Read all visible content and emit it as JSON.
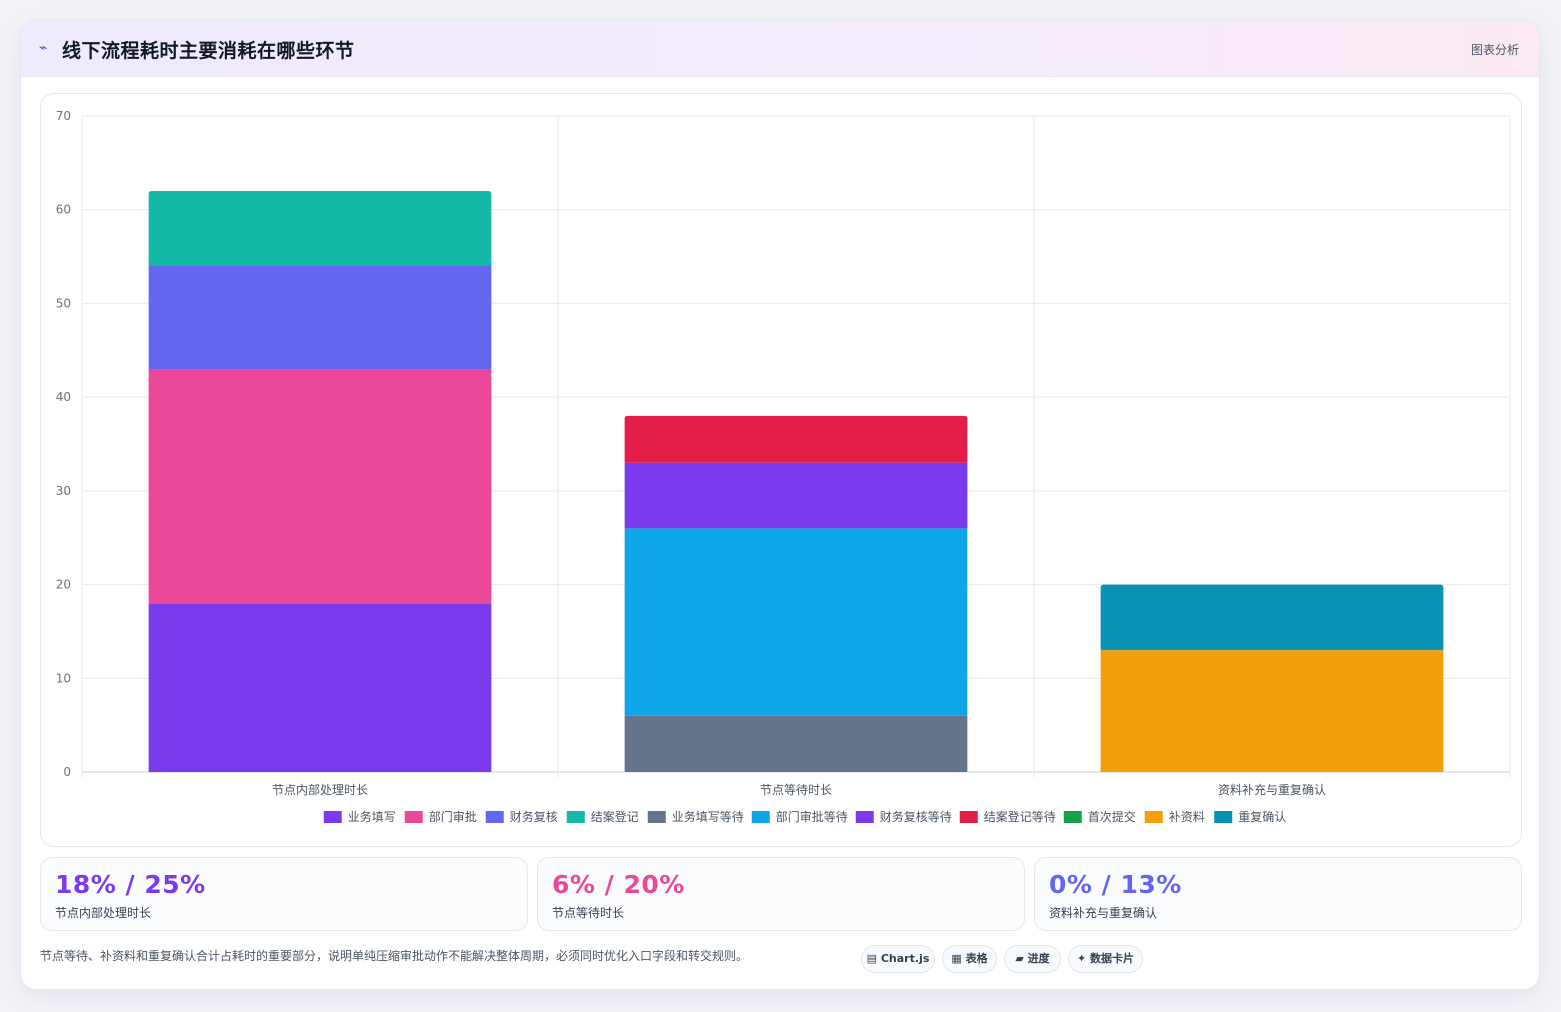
{
  "header": {
    "icon": "trend-line-icon",
    "title": "线下流程耗时主要消耗在哪些环节",
    "tag": "图表分析"
  },
  "chart_data": {
    "type": "bar",
    "stacked": true,
    "categories": [
      "节点内部处理时长",
      "节点等待时长",
      "资料补充与重复确认"
    ],
    "ylim": [
      0,
      70
    ],
    "yticks": [
      0,
      10,
      20,
      30,
      40,
      50,
      60,
      70
    ],
    "grid": true,
    "legend_position": "bottom",
    "series": [
      {
        "name": "业务填写",
        "color": "#7c3aed",
        "values": [
          18,
          0,
          0
        ]
      },
      {
        "name": "部门审批",
        "color": "#ec4899",
        "values": [
          25,
          0,
          0
        ]
      },
      {
        "name": "财务复核",
        "color": "#6366f1",
        "values": [
          11,
          0,
          0
        ]
      },
      {
        "name": "结案登记",
        "color": "#14b8a6",
        "values": [
          8,
          0,
          0
        ]
      },
      {
        "name": "业务填写等待",
        "color": "#64748b",
        "values": [
          0,
          6,
          0
        ]
      },
      {
        "name": "部门审批等待",
        "color": "#0ea5e9",
        "values": [
          0,
          20,
          0
        ]
      },
      {
        "name": "财务复核等待",
        "color": "#7c3aed",
        "values": [
          0,
          7,
          0
        ]
      },
      {
        "name": "结案登记等待",
        "color": "#e11d48",
        "values": [
          0,
          5,
          0
        ]
      },
      {
        "name": "首次提交",
        "color": "#16a34a",
        "values": [
          0,
          0,
          0
        ]
      },
      {
        "name": "补资料",
        "color": "#f59e0b",
        "values": [
          0,
          0,
          13
        ]
      },
      {
        "name": "重复确认",
        "color": "#0891b2",
        "values": [
          0,
          0,
          7
        ]
      }
    ]
  },
  "stats": [
    {
      "value": "18% / 25%",
      "label": "节点内部处理时长",
      "color": "#7c3aed"
    },
    {
      "value": "6% / 20%",
      "label": "节点等待时长",
      "color": "#ec4899"
    },
    {
      "value": "0% / 13%",
      "label": "资料补充与重复确认",
      "color": "#6366f1"
    }
  ],
  "footnote": "节点等待、补资料和重复确认合计占耗时的重要部分，说明单纯压缩审批动作不能解决整体周期，必须同时优化入口字段和转交规则。",
  "chips": [
    {
      "icon": "▤",
      "label": "Chart.js"
    },
    {
      "icon": "▦",
      "label": "表格"
    },
    {
      "icon": "▰",
      "label": "进度"
    },
    {
      "icon": "✦",
      "label": "数据卡片"
    }
  ]
}
